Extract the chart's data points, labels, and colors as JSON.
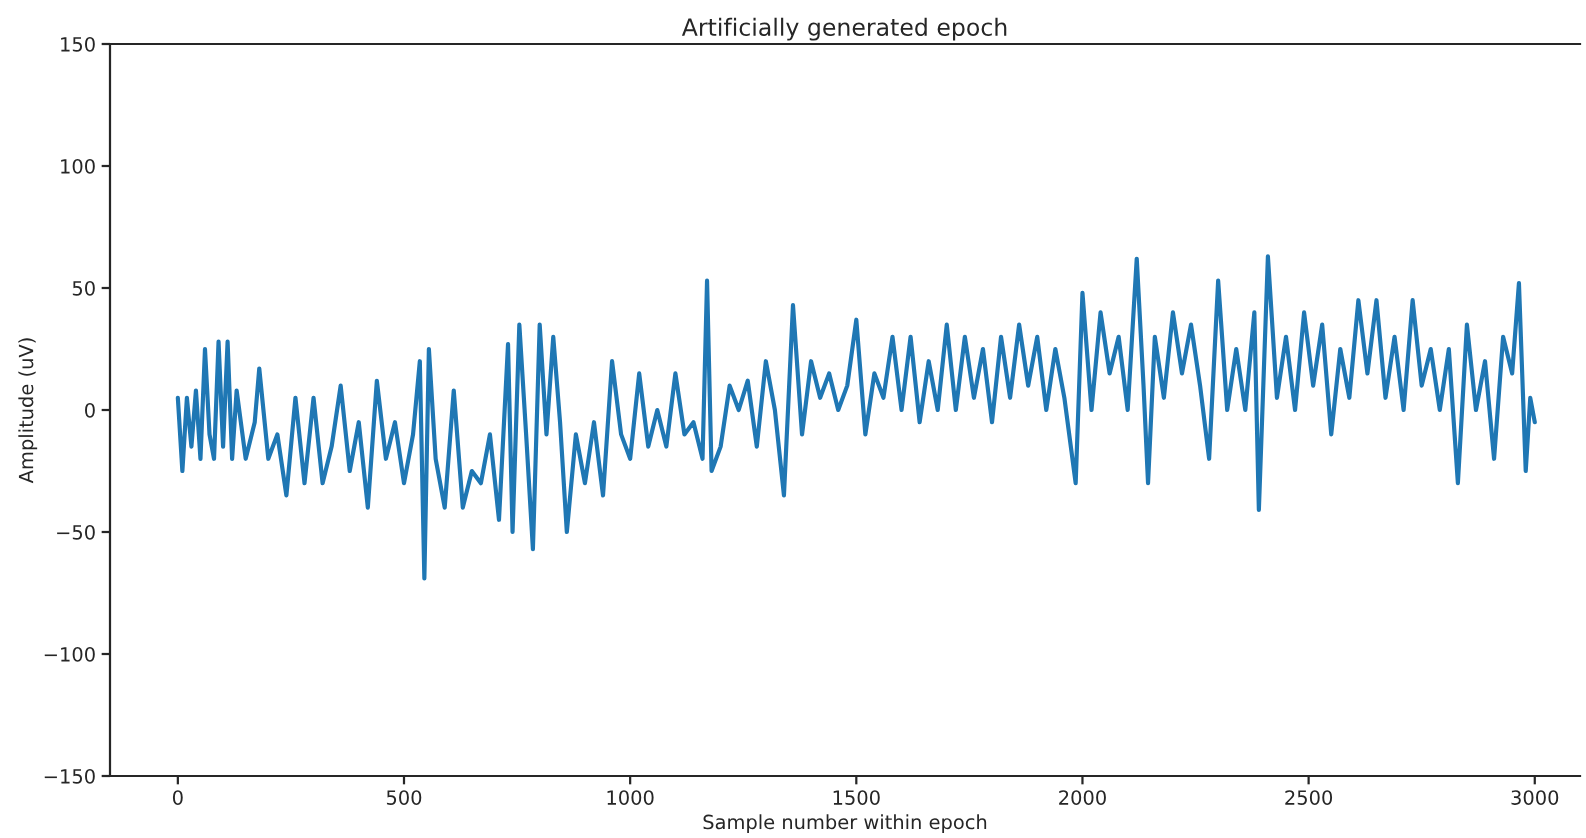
{
  "chart_data": {
    "type": "line",
    "title": "Artificially generated epoch",
    "xlabel": "Sample number within epoch",
    "ylabel": "Amplitude (uV)",
    "x": [
      0,
      10,
      20,
      30,
      40,
      50,
      60,
      70,
      80,
      90,
      100,
      110,
      120,
      130,
      150,
      170,
      180,
      200,
      220,
      240,
      260,
      280,
      300,
      320,
      340,
      360,
      380,
      400,
      420,
      440,
      460,
      480,
      500,
      520,
      535,
      545,
      555,
      570,
      590,
      610,
      630,
      650,
      670,
      690,
      710,
      730,
      740,
      755,
      770,
      785,
      800,
      815,
      830,
      845,
      860,
      880,
      900,
      920,
      940,
      960,
      980,
      1000,
      1020,
      1040,
      1060,
      1080,
      1100,
      1120,
      1140,
      1160,
      1170,
      1180,
      1200,
      1220,
      1240,
      1260,
      1280,
      1300,
      1320,
      1340,
      1360,
      1380,
      1400,
      1420,
      1440,
      1460,
      1480,
      1500,
      1520,
      1540,
      1560,
      1580,
      1600,
      1620,
      1640,
      1660,
      1680,
      1700,
      1720,
      1740,
      1760,
      1780,
      1800,
      1820,
      1840,
      1860,
      1880,
      1900,
      1920,
      1940,
      1960,
      1985,
      2000,
      2020,
      2040,
      2060,
      2080,
      2100,
      2120,
      2135,
      2145,
      2160,
      2180,
      2200,
      2220,
      2240,
      2260,
      2280,
      2300,
      2320,
      2340,
      2360,
      2380,
      2390,
      2410,
      2430,
      2450,
      2470,
      2490,
      2510,
      2530,
      2550,
      2570,
      2590,
      2610,
      2630,
      2650,
      2670,
      2690,
      2710,
      2730,
      2750,
      2770,
      2790,
      2810,
      2830,
      2850,
      2870,
      2890,
      2910,
      2930,
      2950,
      2965,
      2980,
      2990,
      3000
    ],
    "series": [
      {
        "color": "#1f77b4",
        "values": [
          5,
          -25,
          5,
          -15,
          8,
          -20,
          25,
          -10,
          -20,
          28,
          -15,
          28,
          -20,
          8,
          -20,
          -5,
          17,
          -20,
          -10,
          -35,
          5,
          -30,
          5,
          -30,
          -15,
          10,
          -25,
          -5,
          -40,
          12,
          -20,
          -5,
          -30,
          -10,
          20,
          -69,
          25,
          -20,
          -40,
          8,
          -40,
          -25,
          -30,
          -10,
          -45,
          27,
          -50,
          35,
          -10,
          -57,
          35,
          -10,
          30,
          -5,
          -50,
          -10,
          -30,
          -5,
          -35,
          20,
          -10,
          -20,
          15,
          -15,
          0,
          -15,
          15,
          -10,
          -5,
          -20,
          53,
          -25,
          -15,
          10,
          0,
          12,
          -15,
          20,
          0,
          -35,
          43,
          -10,
          20,
          5,
          15,
          0,
          10,
          37,
          -10,
          15,
          5,
          30,
          0,
          30,
          -5,
          20,
          0,
          35,
          0,
          30,
          5,
          25,
          -5,
          30,
          5,
          35,
          10,
          30,
          0,
          25,
          5,
          -30,
          48,
          0,
          40,
          15,
          30,
          0,
          62,
          10,
          -30,
          30,
          5,
          40,
          15,
          35,
          10,
          -20,
          53,
          0,
          25,
          0,
          40,
          -41,
          63,
          5,
          30,
          0,
          40,
          10,
          35,
          -10,
          25,
          5,
          45,
          15,
          45,
          5,
          30,
          0,
          45,
          10,
          25,
          0,
          25,
          -30,
          35,
          0,
          20,
          -20,
          30,
          15,
          52,
          -25,
          5,
          -5
        ]
      }
    ],
    "xlim": [
      -150,
      3100
    ],
    "ylim": [
      -150,
      150
    ],
    "xticks": [
      0,
      500,
      1000,
      1500,
      2000,
      2500,
      3000
    ],
    "yticks": [
      {
        "value": -150,
        "label": "−150"
      },
      {
        "value": -100,
        "label": "−100"
      },
      {
        "value": -50,
        "label": "−50"
      },
      0,
      50,
      100,
      150
    ],
    "grid": false
  }
}
